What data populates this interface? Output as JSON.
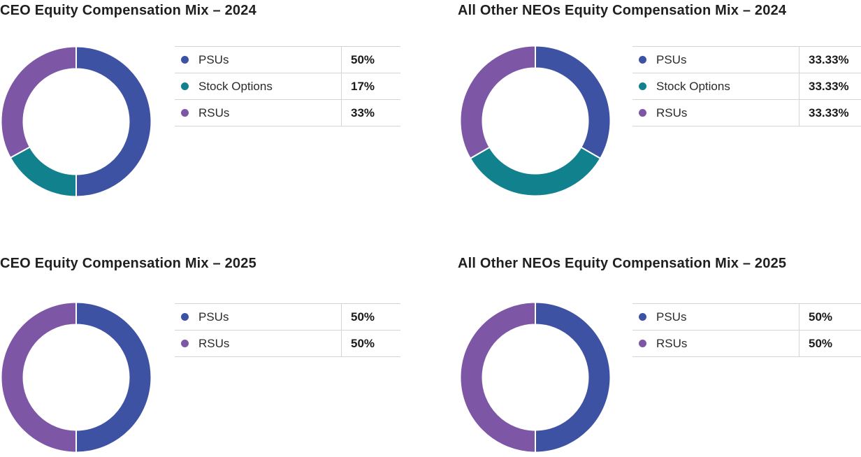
{
  "palette": {
    "psus": "#3E52A4",
    "stock_options": "#12818E",
    "rsus": "#7D57A6",
    "title_text": "#1F1F1F",
    "label_text": "#2B2B2B",
    "value_text": "#1A1A1A",
    "table_border": "#D4D4D4",
    "segment_gap": "#FFFFFF"
  },
  "chart_data": [
    {
      "type": "pie",
      "subtype": "donut",
      "id": "ceo-2024",
      "title": "CEO Equity Compensation Mix – 2024",
      "start_angle": "12-o-clock",
      "direction": "clockwise",
      "legend_position": "right",
      "categories": [
        "PSUs",
        "Stock Options",
        "RSUs"
      ],
      "values": [
        50,
        17,
        33
      ],
      "value_labels": [
        "50%",
        "17%",
        "33%"
      ],
      "color_keys": [
        "psus",
        "stock_options",
        "rsus"
      ]
    },
    {
      "type": "pie",
      "subtype": "donut",
      "id": "neo-2024",
      "title": "All Other NEOs Equity Compensation Mix – 2024",
      "start_angle": "12-o-clock",
      "direction": "clockwise",
      "legend_position": "right",
      "categories": [
        "PSUs",
        "Stock Options",
        "RSUs"
      ],
      "values": [
        33.33,
        33.33,
        33.33
      ],
      "value_labels": [
        "33.33%",
        "33.33%",
        "33.33%"
      ],
      "color_keys": [
        "psus",
        "stock_options",
        "rsus"
      ]
    },
    {
      "type": "pie",
      "subtype": "donut",
      "id": "ceo-2025",
      "title": "CEO Equity Compensation Mix – 2025",
      "start_angle": "12-o-clock",
      "direction": "clockwise",
      "legend_position": "right",
      "categories": [
        "PSUs",
        "RSUs"
      ],
      "values": [
        50,
        50
      ],
      "value_labels": [
        "50%",
        "50%"
      ],
      "color_keys": [
        "psus",
        "rsus"
      ]
    },
    {
      "type": "pie",
      "subtype": "donut",
      "id": "neo-2025",
      "title": "All Other NEOs Equity Compensation Mix – 2025",
      "start_angle": "12-o-clock",
      "direction": "clockwise",
      "legend_position": "right",
      "categories": [
        "PSUs",
        "RSUs"
      ],
      "values": [
        50,
        50
      ],
      "value_labels": [
        "50%",
        "50%"
      ],
      "color_keys": [
        "psus",
        "rsus"
      ]
    }
  ]
}
